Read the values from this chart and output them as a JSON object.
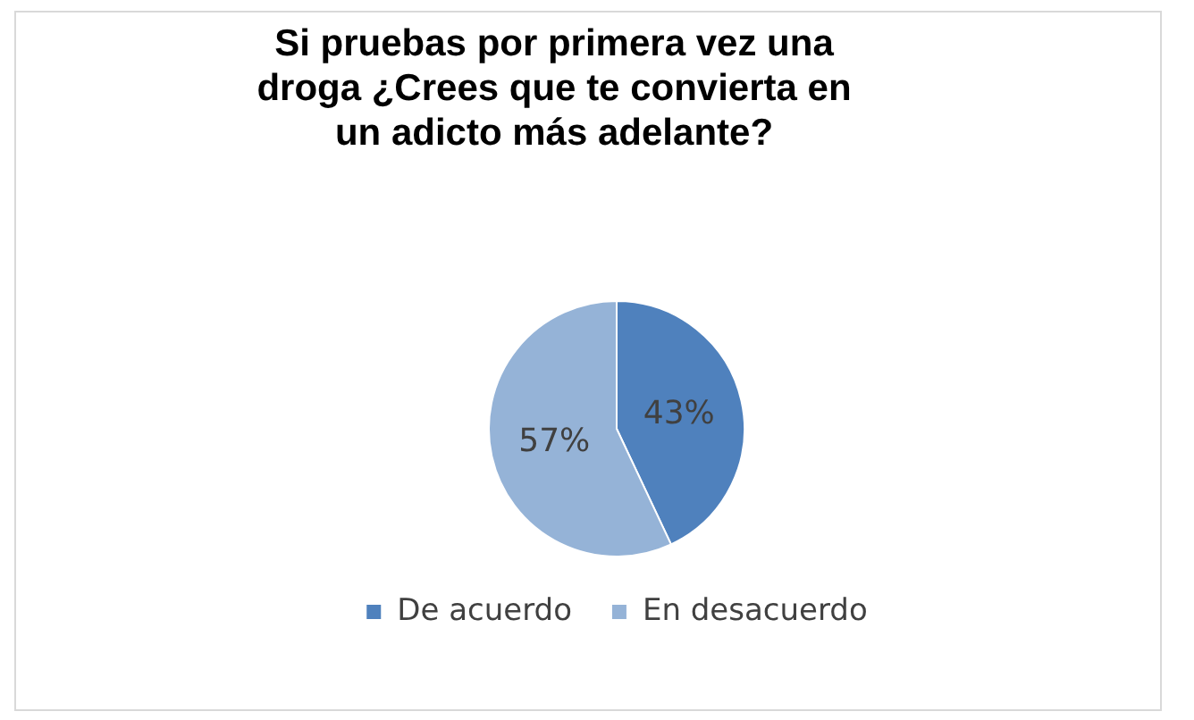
{
  "chart_data": {
    "type": "pie",
    "title": "Si pruebas por primera vez una droga ¿Crees que te convierta en un adicto más adelante?",
    "categories": [
      "De acuerdo",
      "En desacuerdo"
    ],
    "values": [
      43,
      57
    ],
    "colors": [
      "#4f81bd",
      "#95b3d7"
    ],
    "value_labels": [
      "43%",
      "57%"
    ],
    "legend": "bottom"
  }
}
